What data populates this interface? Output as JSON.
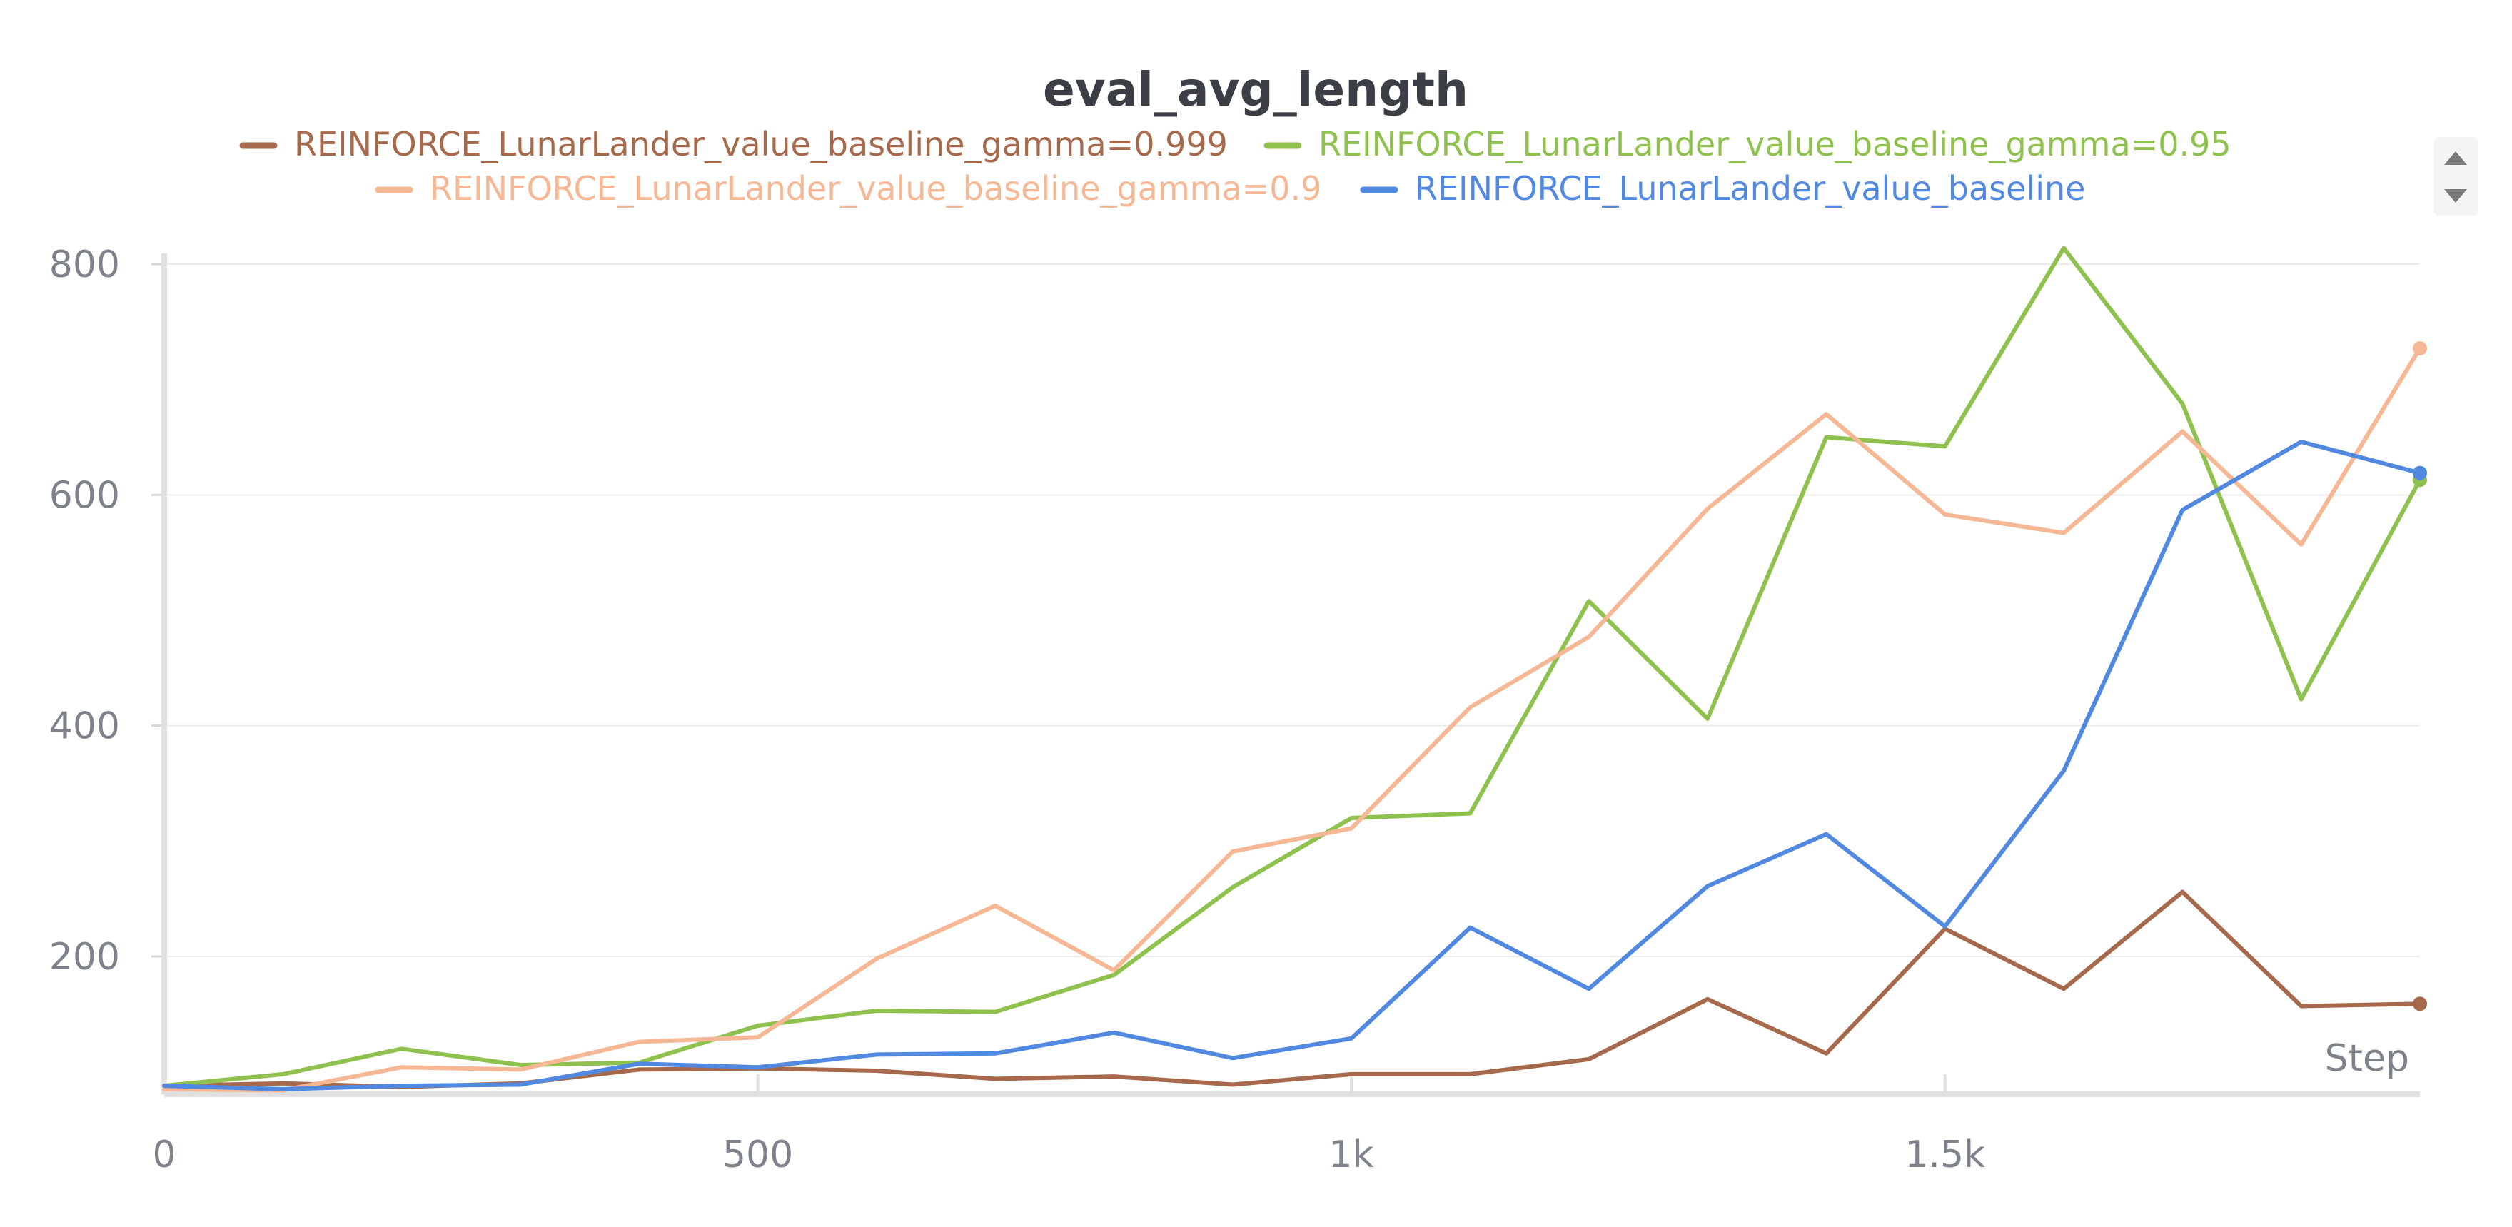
{
  "chart_data": {
    "type": "line",
    "title": "eval_avg_length",
    "xlabel": "Step",
    "ylabel": "",
    "xlim": [
      0,
      1900
    ],
    "ylim": [
      80,
      820
    ],
    "x_ticks": [
      {
        "value": 0,
        "label": "0"
      },
      {
        "value": 500,
        "label": "500"
      },
      {
        "value": 1000,
        "label": "1k"
      },
      {
        "value": 1500,
        "label": "1.5k"
      }
    ],
    "y_ticks": [
      {
        "value": 200,
        "label": "200"
      },
      {
        "value": 400,
        "label": "400"
      },
      {
        "value": 600,
        "label": "600"
      },
      {
        "value": 800,
        "label": "800"
      }
    ],
    "grid": true,
    "legend_position": "top",
    "x": [
      0,
      100,
      200,
      300,
      400,
      500,
      600,
      700,
      800,
      900,
      1000,
      1100,
      1200,
      1300,
      1400,
      1500,
      1600,
      1700,
      1800,
      1900
    ],
    "series": [
      {
        "name": "REINFORCE_LunarLander_value_baseline_gamma=0.999",
        "color": "#a6694b",
        "values": [
          88,
          90,
          87,
          90,
          102,
          103,
          101,
          94,
          96,
          89,
          98,
          98,
          111,
          163,
          116,
          224,
          172,
          256,
          157,
          159
        ]
      },
      {
        "name": "REINFORCE_LunarLander_value_baseline_gamma=0.95",
        "color": "#8fc14e",
        "values": [
          88,
          98,
          120,
          106,
          108,
          140,
          153,
          152,
          184,
          260,
          320,
          324,
          508,
          406,
          650,
          642,
          814,
          679,
          423,
          613
        ]
      },
      {
        "name": "REINFORCE_LunarLander_value_baseline_gamma=0.9",
        "color": "#f6b795",
        "values": [
          85,
          84,
          104,
          102,
          126,
          130,
          198,
          244,
          188,
          291,
          311,
          416,
          477,
          588,
          670,
          583,
          567,
          655,
          557,
          727
        ]
      },
      {
        "name": "REINFORCE_LunarLander_value_baseline",
        "color": "#5189e0",
        "values": [
          88,
          85,
          88,
          89,
          107,
          104,
          115,
          116,
          134,
          112,
          129,
          225,
          172,
          261,
          306,
          226,
          361,
          587,
          646,
          619
        ]
      }
    ]
  }
}
